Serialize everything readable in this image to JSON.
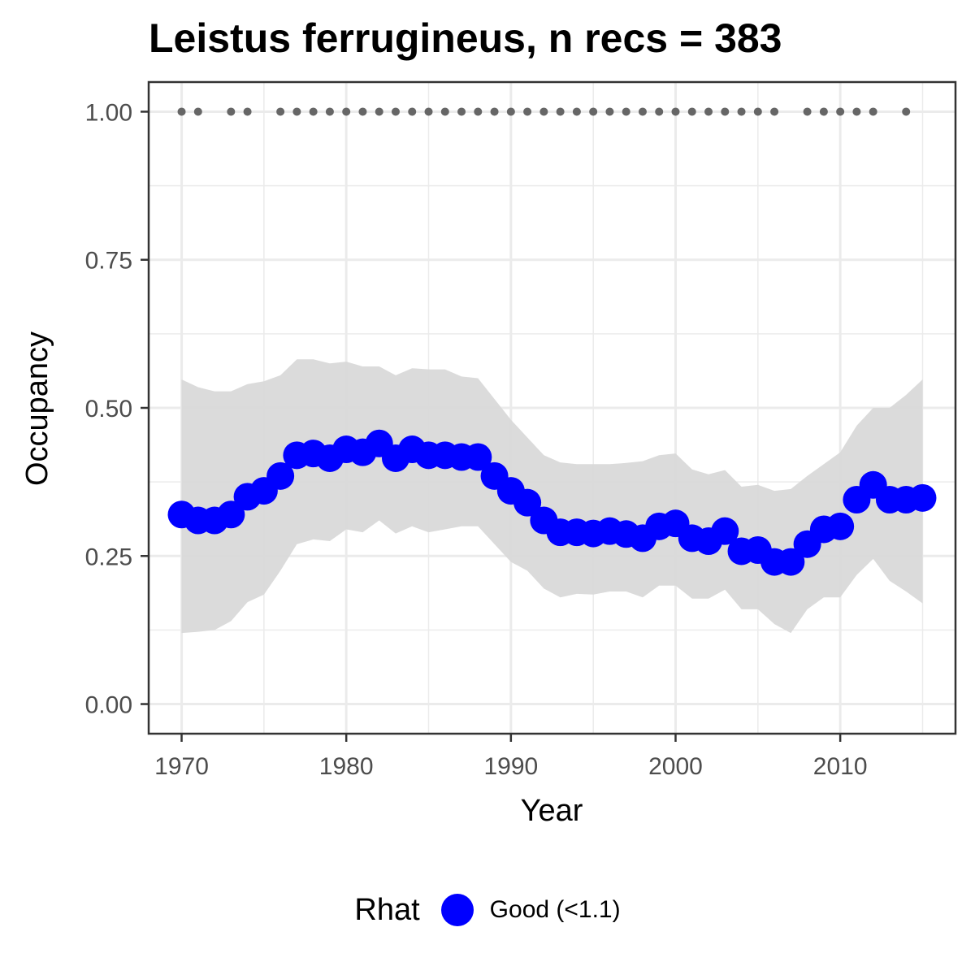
{
  "chart_data": {
    "type": "line",
    "title": "Leistus ferrugineus, n recs = 383",
    "xlabel": "Year",
    "ylabel": "Occupancy",
    "xlim": [
      1968,
      2017
    ],
    "ylim": [
      -0.05,
      1.05
    ],
    "xticks": [
      1970,
      1980,
      1990,
      2000,
      2010
    ],
    "yticks": [
      0.0,
      0.25,
      0.5,
      0.75,
      1.0
    ],
    "ytick_labels": [
      "0.00",
      "0.25",
      "0.50",
      "0.75",
      "1.00"
    ],
    "grid": true,
    "legend_position": "bottom",
    "legend": {
      "title": "Rhat",
      "entries": [
        {
          "label": "Good (<1.1)",
          "color": "#0000ff"
        }
      ]
    },
    "years": [
      1970,
      1971,
      1972,
      1973,
      1974,
      1975,
      1976,
      1977,
      1978,
      1979,
      1980,
      1981,
      1982,
      1983,
      1984,
      1985,
      1986,
      1987,
      1988,
      1989,
      1990,
      1991,
      1992,
      1993,
      1994,
      1995,
      1996,
      1997,
      1998,
      1999,
      2000,
      2001,
      2002,
      2003,
      2004,
      2005,
      2006,
      2007,
      2008,
      2009,
      2010,
      2011,
      2012,
      2013,
      2014,
      2015
    ],
    "series": [
      {
        "name": "Good (<1.1)",
        "color": "#0000ff",
        "values": [
          0.32,
          0.31,
          0.31,
          0.32,
          0.35,
          0.36,
          0.385,
          0.42,
          0.423,
          0.415,
          0.43,
          0.425,
          0.44,
          0.415,
          0.43,
          0.42,
          0.42,
          0.417,
          0.417,
          0.385,
          0.36,
          0.34,
          0.31,
          0.29,
          0.29,
          0.288,
          0.292,
          0.287,
          0.28,
          0.3,
          0.305,
          0.28,
          0.275,
          0.292,
          0.258,
          0.26,
          0.24,
          0.24,
          0.27,
          0.295,
          0.3,
          0.345,
          0.37,
          0.345,
          0.345,
          0.348
        ]
      }
    ],
    "ci_band": {
      "color": "#d9d9d9",
      "upper": [
        0.548,
        0.535,
        0.528,
        0.528,
        0.54,
        0.545,
        0.555,
        0.582,
        0.582,
        0.575,
        0.578,
        0.57,
        0.57,
        0.555,
        0.567,
        0.565,
        0.565,
        0.553,
        0.55,
        0.515,
        0.48,
        0.45,
        0.42,
        0.408,
        0.405,
        0.405,
        0.405,
        0.407,
        0.41,
        0.42,
        0.423,
        0.396,
        0.388,
        0.395,
        0.367,
        0.37,
        0.36,
        0.363,
        0.385,
        0.405,
        0.425,
        0.47,
        0.5,
        0.5,
        0.522,
        0.548
      ],
      "lower": [
        0.12,
        0.122,
        0.125,
        0.14,
        0.172,
        0.185,
        0.225,
        0.27,
        0.278,
        0.275,
        0.295,
        0.29,
        0.31,
        0.288,
        0.3,
        0.29,
        0.295,
        0.3,
        0.3,
        0.27,
        0.24,
        0.225,
        0.195,
        0.18,
        0.186,
        0.185,
        0.19,
        0.19,
        0.18,
        0.2,
        0.2,
        0.178,
        0.178,
        0.193,
        0.16,
        0.16,
        0.135,
        0.12,
        0.16,
        0.18,
        0.18,
        0.218,
        0.245,
        0.208,
        0.19,
        0.17
      ]
    },
    "observed_years": {
      "color": "#666666",
      "value": 1.0,
      "x": [
        1970,
        1971,
        1973,
        1974,
        1976,
        1977,
        1978,
        1979,
        1980,
        1981,
        1982,
        1983,
        1984,
        1985,
        1986,
        1987,
        1988,
        1989,
        1990,
        1991,
        1992,
        1993,
        1994,
        1995,
        1996,
        1997,
        1998,
        1999,
        2000,
        2001,
        2002,
        2003,
        2004,
        2005,
        2006,
        2008,
        2009,
        2010,
        2011,
        2012,
        2014
      ]
    }
  }
}
